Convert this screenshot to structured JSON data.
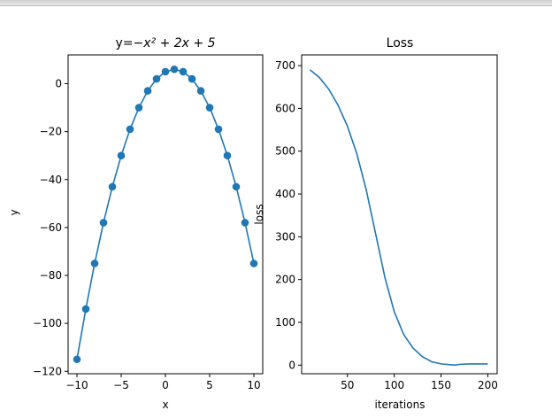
{
  "chart_data": [
    {
      "type": "line",
      "title_prefix": "y=",
      "title_math": "−x² + 2x + 5",
      "xlabel": "x",
      "ylabel": "y",
      "xlim": [
        -11,
        11
      ],
      "ylim": [
        -121,
        12
      ],
      "xticks": [
        -10,
        -5,
        0,
        5,
        10
      ],
      "xtick_labels": [
        "−10",
        "−5",
        "0",
        "5",
        "10"
      ],
      "yticks": [
        -120,
        -100,
        -80,
        -60,
        -40,
        -20,
        0
      ],
      "ytick_labels": [
        "−120",
        "−100",
        "−80",
        "−60",
        "−40",
        "−20",
        "0"
      ],
      "markers": true,
      "color": "#1f77b4",
      "series": [
        {
          "x": [
            -10,
            -9,
            -8,
            -7,
            -6,
            -5,
            -4,
            -3,
            -2,
            -1,
            0,
            1,
            2,
            3,
            4,
            5,
            6,
            7,
            8,
            9,
            10
          ],
          "y": [
            -115,
            -94,
            -75,
            -58,
            -43,
            -30,
            -19,
            -10,
            -3,
            2,
            5,
            6,
            5,
            2,
            -3,
            -10,
            -19,
            -30,
            -43,
            -58,
            -75
          ]
        }
      ]
    },
    {
      "type": "line",
      "title": "Loss",
      "xlabel": "iterations",
      "ylabel": "loss",
      "xlim": [
        1,
        210
      ],
      "ylim": [
        -20,
        725
      ],
      "xticks": [
        50,
        100,
        150,
        200
      ],
      "xtick_labels": [
        "50",
        "100",
        "150",
        "200"
      ],
      "yticks": [
        0,
        100,
        200,
        300,
        400,
        500,
        600,
        700
      ],
      "ytick_labels": [
        "0",
        "100",
        "200",
        "300",
        "400",
        "500",
        "600",
        "700"
      ],
      "markers": false,
      "color": "#1f77b4",
      "series": [
        {
          "x": [
            10,
            20,
            30,
            40,
            50,
            60,
            70,
            80,
            90,
            100,
            110,
            120,
            130,
            140,
            150,
            160,
            165,
            170,
            180,
            190,
            200
          ],
          "y": [
            690,
            672,
            645,
            607,
            558,
            494,
            410,
            308,
            205,
            125,
            72,
            40,
            20,
            8,
            3,
            1,
            0,
            2,
            3,
            3,
            3
          ]
        }
      ]
    }
  ]
}
